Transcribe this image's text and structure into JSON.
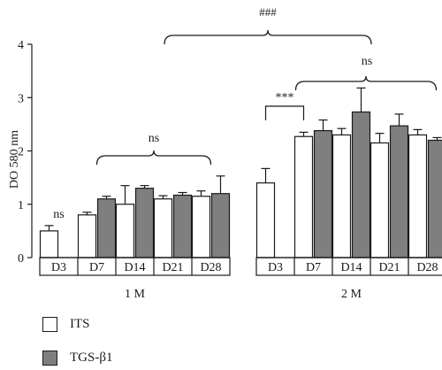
{
  "chart_data": {
    "type": "bar",
    "ylabel": "DO 580 nm",
    "ylim": [
      0,
      4
    ],
    "yticks": [
      0,
      1,
      2,
      3,
      4
    ],
    "groups": [
      {
        "label": "1 M",
        "categories": [
          "D3",
          "D7",
          "D14",
          "D21",
          "D28"
        ],
        "series": [
          {
            "name": "ITS",
            "values": [
              0.5,
              0.8,
              1.0,
              1.1,
              1.15
            ],
            "errors": [
              0.1,
              0.05,
              0.35,
              0.06,
              0.1
            ]
          },
          {
            "name": "TGS-β1",
            "values": [
              null,
              1.1,
              1.3,
              1.17,
              1.2
            ],
            "errors": [
              null,
              0.05,
              0.05,
              0.05,
              0.33
            ]
          }
        ]
      },
      {
        "label": "2 M",
        "categories": [
          "D3",
          "D7",
          "D14",
          "D21",
          "D28"
        ],
        "series": [
          {
            "name": "ITS",
            "values": [
              1.4,
              2.27,
              2.3,
              2.15,
              2.3
            ],
            "errors": [
              0.27,
              0.08,
              0.12,
              0.18,
              0.1
            ]
          },
          {
            "name": "TGS-β1",
            "values": [
              null,
              2.38,
              2.73,
              2.47,
              2.2
            ],
            "errors": [
              null,
              0.2,
              0.45,
              0.22,
              0.05
            ]
          }
        ]
      }
    ],
    "annotations": {
      "hash_across_groups": "###",
      "group1_d3": "ns",
      "group1_span": "ns",
      "group2_d3_d7": "***",
      "group2_span": "ns"
    },
    "legend": {
      "placement": "bottom-left",
      "items": [
        {
          "label": "ITS",
          "color": "#ffffff"
        },
        {
          "label": "TGS-β1",
          "color": "#7f7f7f"
        }
      ]
    },
    "colors": {
      "its": "#ffffff",
      "tgs": "#7f7f7f",
      "ink": "#1a1a1a"
    }
  }
}
